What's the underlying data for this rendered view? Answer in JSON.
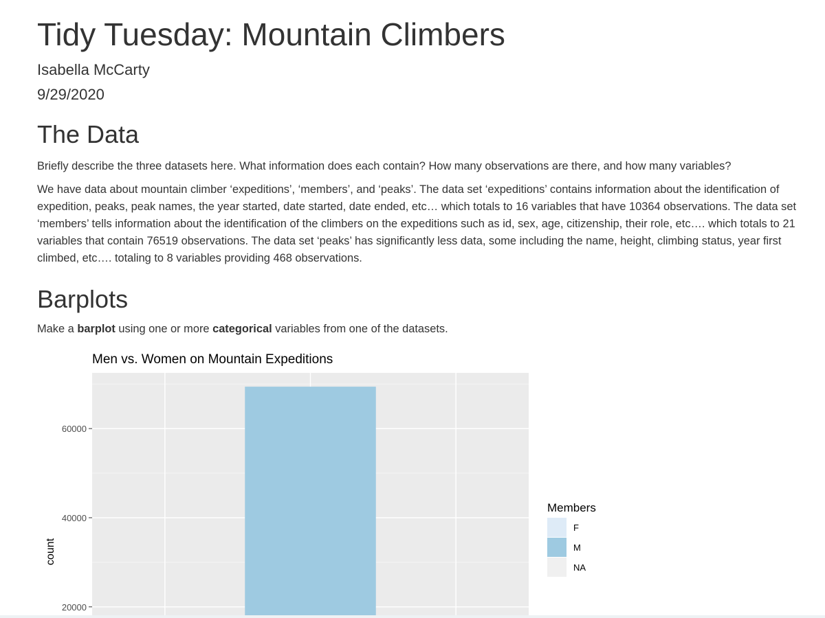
{
  "document": {
    "title": "Tidy Tuesday: Mountain Climbers",
    "author": "Isabella McCarty",
    "date": "9/29/2020"
  },
  "sections": {
    "data": {
      "heading": "The Data",
      "prompt": "Briefly describe the three datasets here. What information does each contain? How many observations are there, and how many variables?",
      "description": "We have data about mountain climber ‘expeditions’, ‘members’, and ‘peaks’. The data set ‘expeditions’ contains information about the identification of expedition, peaks, peak names, the year started, date started, date ended, etc… which totals to 16 variables that have 10364 observations. The data set ‘members’ tells information about the identification of the climbers on the expeditions such as id, sex, age, citizenship, their role, etc…. which totals to 21 variables that contain 76519 observations. The data set ‘peaks’ has significantly less data, some including the name, height, climbing status, year first climbed, etc…. totaling to 8 variables providing 468 observations."
    },
    "barplots": {
      "heading": "Barplots",
      "prompt_pre": "Make a ",
      "prompt_bold1": "barplot",
      "prompt_mid": " using one or more ",
      "prompt_bold2": "categorical",
      "prompt_post": " variables from one of the datasets."
    }
  },
  "chart_data": {
    "type": "bar",
    "title": "Men vs. Women on Mountain Expeditions",
    "xlabel": "",
    "ylabel": "count",
    "categories": [
      "F",
      "M",
      "NA"
    ],
    "values": [
      null,
      69400,
      null
    ],
    "visible_ylim": [
      17500,
      72500
    ],
    "yticks": [
      20000,
      40000,
      60000
    ],
    "ytick_labels": [
      "20000",
      "40000",
      "60000"
    ],
    "grid": true,
    "legend": {
      "title": "Members",
      "placement": "right",
      "entries": [
        {
          "label": "F",
          "color": "#deebf7"
        },
        {
          "label": "M",
          "color": "#9ecae1"
        },
        {
          "label": "NA",
          "color": "#f0f0f0"
        }
      ]
    },
    "colors": {
      "panel": "#ebebeb",
      "grid_major": "#ffffff",
      "grid_minor": "#f5f5f5"
    }
  }
}
